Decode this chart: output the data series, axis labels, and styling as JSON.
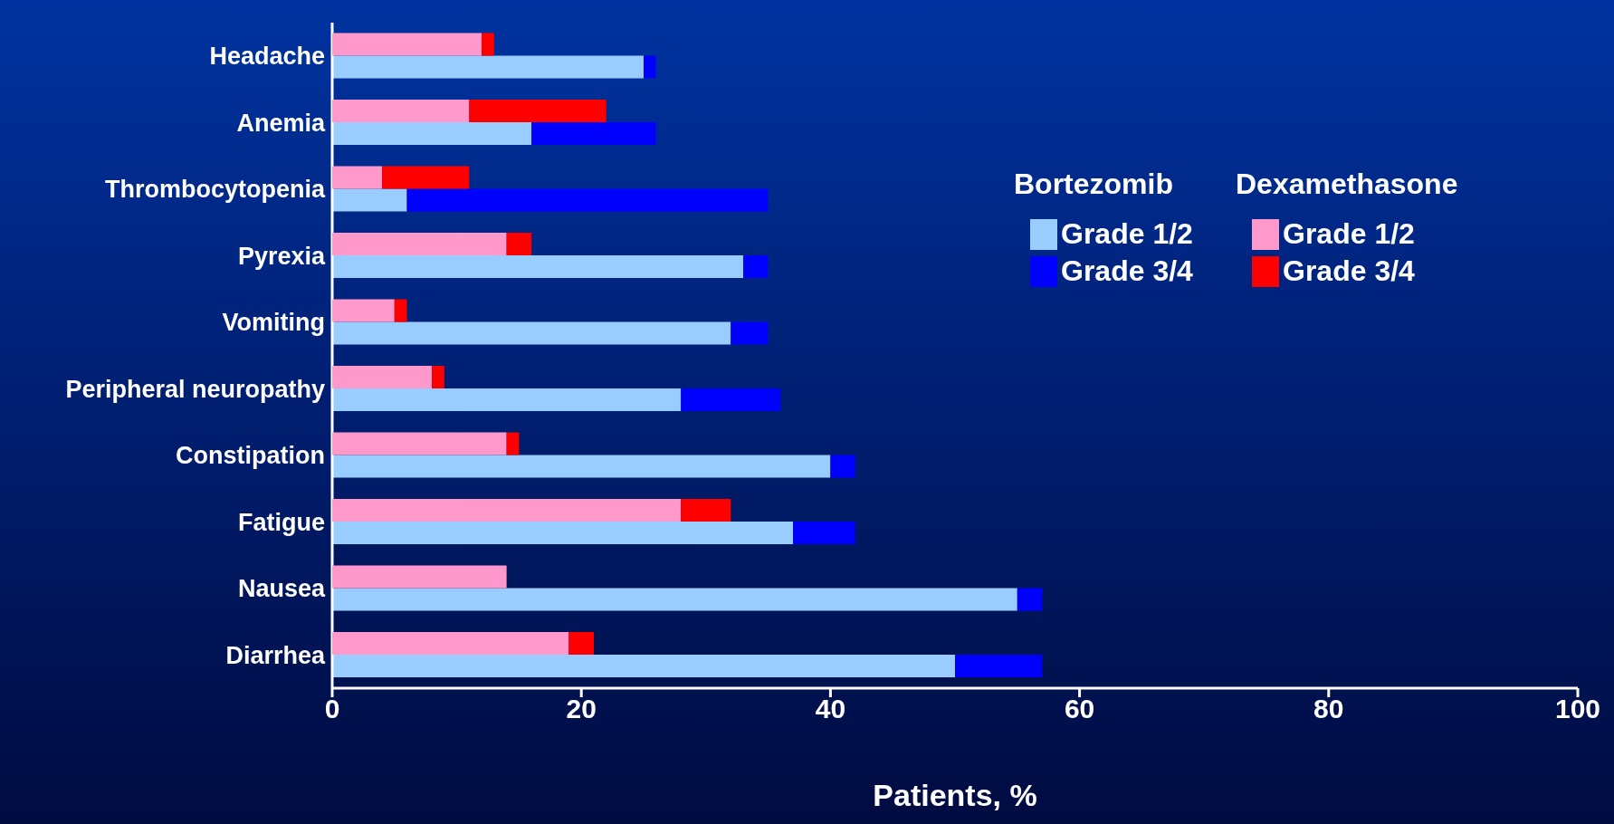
{
  "chart_data": [
    {
      "type": "bar",
      "orientation": "horizontal",
      "stacked": true,
      "xlabel": "Patients, %",
      "legend_title": "Bortezomib",
      "categories": [
        "Headache",
        "Anemia",
        "Thrombocytopenia",
        "Pyrexia",
        "Vomiting",
        "Peripheral neuropathy",
        "Constipation",
        "Fatigue",
        "Nausea",
        "Diarrhea"
      ],
      "series": [
        {
          "name": "Grade 1/2",
          "color": "#99ccff",
          "values": [
            25,
            16,
            6,
            33,
            32,
            28,
            40,
            37,
            55,
            50
          ]
        },
        {
          "name": "Grade 3/4",
          "color": "#0000ff",
          "values": [
            1,
            10,
            29,
            2,
            3,
            8,
            2,
            5,
            2,
            7
          ]
        }
      ],
      "xlim": [
        0,
        100
      ],
      "xticks": [
        0,
        20,
        40,
        60,
        80,
        100
      ],
      "legend": "right"
    },
    {
      "type": "bar",
      "orientation": "horizontal",
      "stacked": true,
      "legend_title": "Dexamethasone",
      "series": [
        {
          "name": "Grade 1/2",
          "color": "#ff99cc",
          "values": [
            12,
            11,
            4,
            14,
            5,
            8,
            14,
            28,
            14,
            19
          ]
        },
        {
          "name": "Grade 3/4",
          "color": "#ff0000",
          "values": [
            1,
            11,
            7,
            2,
            1,
            1,
            1,
            4,
            0,
            2
          ]
        }
      ],
      "xlim": [
        0,
        100
      ],
      "xticks": [
        0,
        20,
        40,
        60,
        80,
        100
      ],
      "legend": "right",
      "tick_labels": false
    }
  ]
}
